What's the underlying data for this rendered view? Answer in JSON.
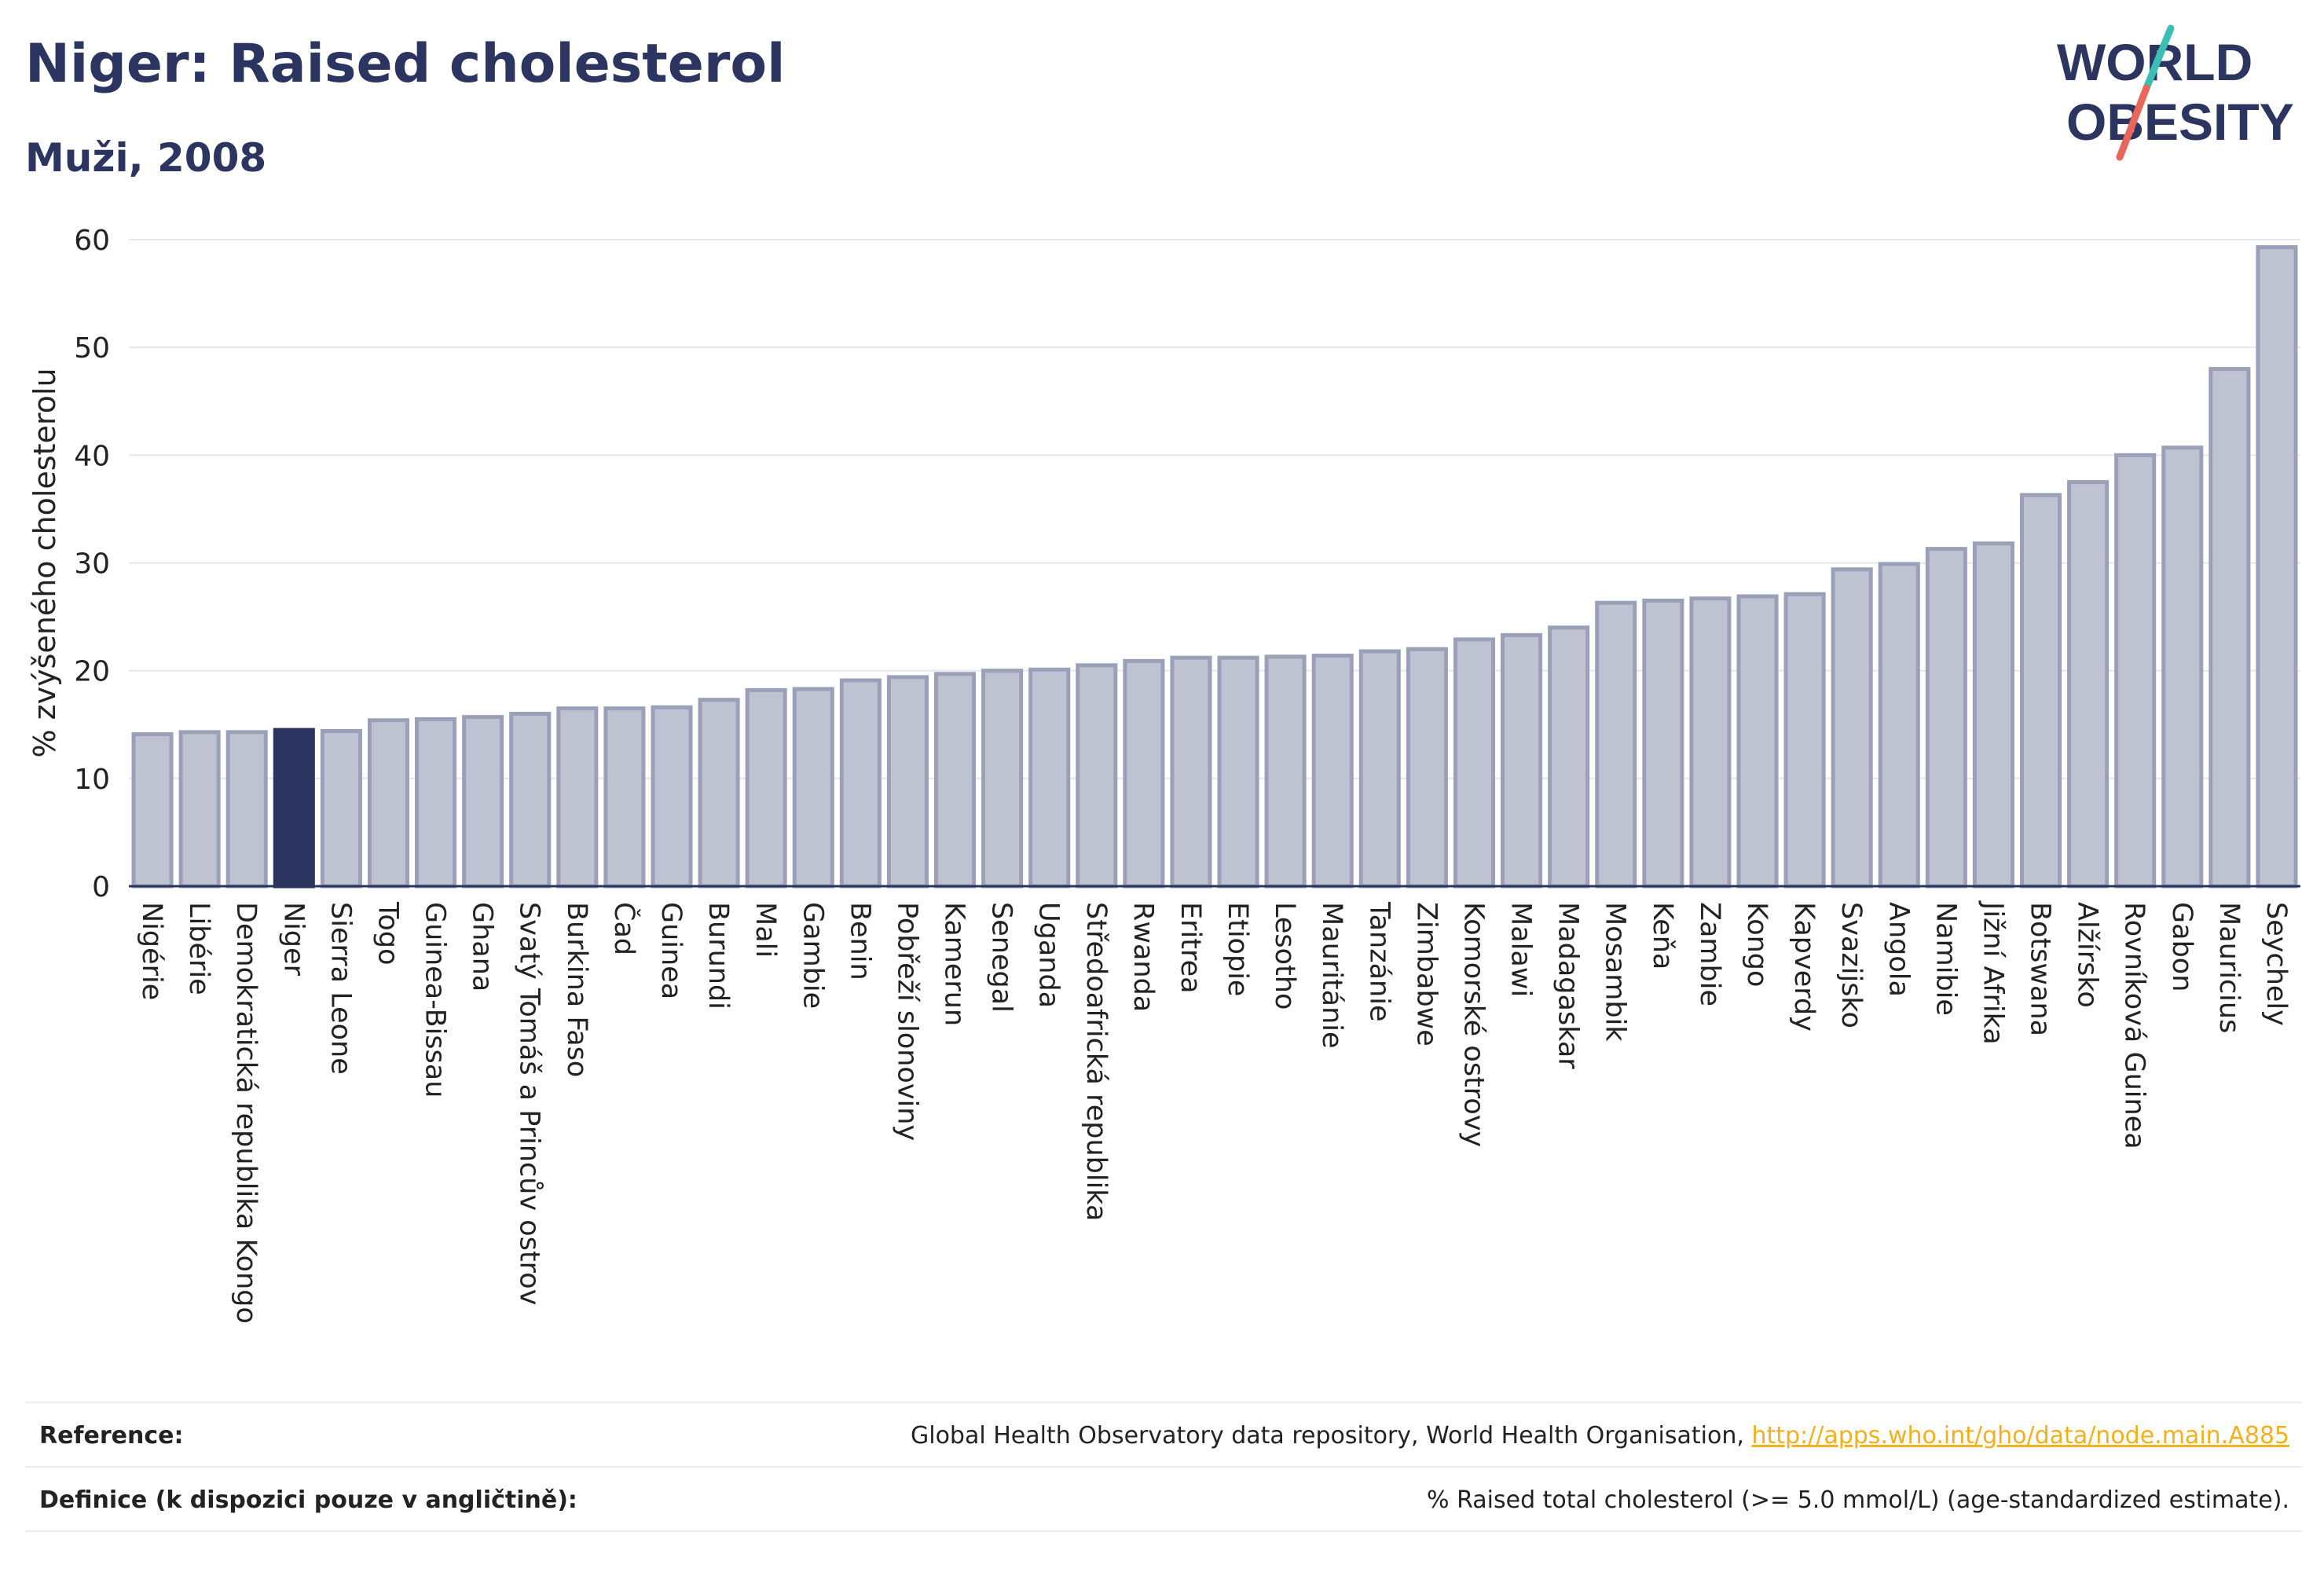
{
  "header": {
    "title": "Niger: Raised cholesterol",
    "subtitle": "Muži, 2008"
  },
  "logo": {
    "line1": "WORLD",
    "line2": "OBESITY",
    "colors": {
      "text": "#2b3560",
      "slash_top": "#3bbfb5",
      "slash_bottom": "#e8665a"
    }
  },
  "colors": {
    "bar_fill": "#bfc3d1",
    "bar_stroke": "#9aa0b8",
    "highlight": "#2b3560",
    "grid": "#e6e6ee",
    "axis": "#2b3560"
  },
  "chart_data": {
    "type": "bar",
    "ylabel": "% zvýšeného cholesterolu",
    "ylim": [
      0,
      60
    ],
    "yticks": [
      0,
      10,
      20,
      30,
      40,
      50,
      60
    ],
    "highlight": "Niger",
    "grid": true,
    "categories": [
      "Nigérie",
      "Libérie",
      "Demokratická republika Kongo",
      "Niger",
      "Sierra Leone",
      "Togo",
      "Guinea-Bissau",
      "Ghana",
      "Svatý Tomáš a Princův ostrov",
      "Burkina Faso",
      "Čad",
      "Guinea",
      "Burundi",
      "Mali",
      "Gambie",
      "Benin",
      "Pobřeží slonoviny",
      "Kamerun",
      "Senegal",
      "Uganda",
      "Středoafrická republika",
      "Rwanda",
      "Eritrea",
      "Etiopie",
      "Lesotho",
      "Mauritánie",
      "Tanzánie",
      "Zimbabwe",
      "Komorské ostrovy",
      "Malawi",
      "Madagaskar",
      "Mosambik",
      "Keňa",
      "Zambie",
      "Kongo",
      "Kapverdy",
      "Svazijsko",
      "Angola",
      "Namibie",
      "Jižní Afrika",
      "Botswana",
      "Alžírsko",
      "Rovníková Guinea",
      "Gabon",
      "Mauricius",
      "Seychely"
    ],
    "values": [
      14.1,
      14.3,
      14.3,
      14.5,
      14.4,
      15.4,
      15.5,
      15.7,
      16.0,
      16.5,
      16.5,
      16.6,
      17.3,
      18.2,
      18.3,
      19.1,
      19.4,
      19.7,
      20.0,
      20.1,
      20.5,
      20.9,
      21.2,
      21.2,
      21.3,
      21.4,
      21.8,
      22.0,
      22.9,
      23.3,
      24.0,
      26.3,
      26.5,
      26.7,
      26.9,
      27.1,
      29.4,
      29.9,
      31.3,
      31.8,
      36.3,
      37.5,
      40.0,
      40.7,
      48.0,
      59.3
    ]
  },
  "footer": {
    "reference_label": "Reference:",
    "reference_text": "Global Health Observatory data repository, World Health Organisation,",
    "reference_link": "http://apps.who.int/gho/data/node.main.A885",
    "definition_label": "Definice (k dispozici pouze v angličtině):",
    "definition_text": "% Raised total cholesterol (>= 5.0 mmol/L) (age-standardized estimate)."
  }
}
